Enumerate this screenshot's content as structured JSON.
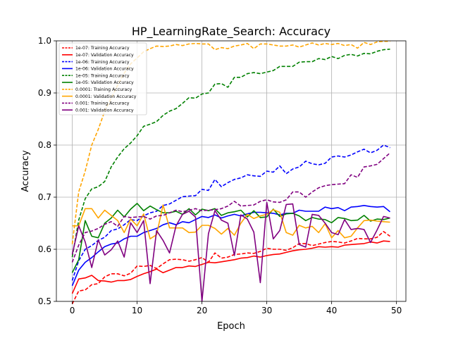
{
  "chart_data": {
    "type": "line",
    "title": "HP_LearningRate_Search: Accuracy",
    "xlabel": "Epoch",
    "ylabel": "Accuracy",
    "xlim": [
      -2.45,
      51.45
    ],
    "ylim": [
      0.5,
      1.0
    ],
    "xticks": [
      0,
      10,
      20,
      30,
      40,
      50
    ],
    "yticks": [
      0.5,
      0.6,
      0.7,
      0.8,
      0.9,
      1.0
    ],
    "grid": true,
    "legend_position": "top-left",
    "x": [
      0,
      1,
      2,
      3,
      4,
      5,
      6,
      7,
      8,
      9,
      10,
      11,
      12,
      13,
      14,
      15,
      16,
      17,
      18,
      19,
      20,
      21,
      22,
      23,
      24,
      25,
      26,
      27,
      28,
      29,
      30,
      31,
      32,
      33,
      34,
      35,
      36,
      37,
      38,
      39,
      40,
      41,
      42,
      43,
      44,
      45,
      46,
      47,
      48,
      49
    ],
    "series": [
      {
        "name": "1e-07: Training Accuracy",
        "color": "#ff0000",
        "dash": true,
        "values": [
          0.495,
          0.52,
          0.522,
          0.532,
          0.534,
          0.547,
          0.553,
          0.553,
          0.549,
          0.554,
          0.568,
          0.567,
          0.569,
          0.563,
          0.572,
          0.58,
          0.581,
          0.58,
          0.577,
          0.58,
          0.584,
          0.575,
          0.593,
          0.583,
          0.585,
          0.59,
          0.591,
          0.593,
          0.592,
          0.596,
          0.602,
          0.6,
          0.6,
          0.598,
          0.603,
          0.611,
          0.611,
          0.607,
          0.61,
          0.613,
          0.615,
          0.614,
          0.612,
          0.616,
          0.621,
          0.62,
          0.62,
          0.623,
          0.634,
          0.625
        ]
      },
      {
        "name": "1e-07: Validation Accuracy",
        "color": "#ff0000",
        "dash": false,
        "values": [
          0.515,
          0.543,
          0.545,
          0.55,
          0.54,
          0.539,
          0.537,
          0.54,
          0.54,
          0.542,
          0.548,
          0.553,
          0.557,
          0.562,
          0.555,
          0.56,
          0.565,
          0.565,
          0.568,
          0.567,
          0.571,
          0.575,
          0.574,
          0.576,
          0.578,
          0.58,
          0.583,
          0.584,
          0.587,
          0.585,
          0.588,
          0.59,
          0.591,
          0.594,
          0.597,
          0.599,
          0.6,
          0.602,
          0.605,
          0.604,
          0.605,
          0.604,
          0.608,
          0.609,
          0.61,
          0.611,
          0.614,
          0.612,
          0.616,
          0.615
        ]
      },
      {
        "name": "1e-06: Training Accuracy",
        "color": "#0000ff",
        "dash": true,
        "values": [
          0.54,
          0.578,
          0.6,
          0.607,
          0.617,
          0.623,
          0.636,
          0.639,
          0.647,
          0.657,
          0.655,
          0.664,
          0.67,
          0.673,
          0.684,
          0.687,
          0.694,
          0.701,
          0.702,
          0.703,
          0.715,
          0.713,
          0.734,
          0.72,
          0.728,
          0.734,
          0.737,
          0.743,
          0.741,
          0.74,
          0.75,
          0.748,
          0.76,
          0.745,
          0.754,
          0.758,
          0.769,
          0.764,
          0.762,
          0.765,
          0.777,
          0.779,
          0.777,
          0.781,
          0.787,
          0.792,
          0.785,
          0.79,
          0.8,
          0.795
        ]
      },
      {
        "name": "1e-06: Validation Accuracy",
        "color": "#0000ff",
        "dash": false,
        "values": [
          0.53,
          0.56,
          0.575,
          0.584,
          0.595,
          0.605,
          0.61,
          0.612,
          0.62,
          0.625,
          0.625,
          0.632,
          0.636,
          0.64,
          0.647,
          0.651,
          0.647,
          0.653,
          0.651,
          0.657,
          0.663,
          0.661,
          0.666,
          0.66,
          0.664,
          0.667,
          0.664,
          0.668,
          0.671,
          0.671,
          0.67,
          0.669,
          0.666,
          0.669,
          0.669,
          0.675,
          0.673,
          0.673,
          0.673,
          0.681,
          0.678,
          0.68,
          0.674,
          0.681,
          0.682,
          0.684,
          0.682,
          0.681,
          0.682,
          0.672
        ]
      },
      {
        "name": "1e-05: Training Accuracy",
        "color": "#008000",
        "dash": true,
        "values": [
          0.585,
          0.656,
          0.697,
          0.716,
          0.72,
          0.73,
          0.758,
          0.777,
          0.793,
          0.804,
          0.818,
          0.836,
          0.84,
          0.845,
          0.857,
          0.865,
          0.87,
          0.88,
          0.891,
          0.89,
          0.898,
          0.9,
          0.917,
          0.918,
          0.911,
          0.93,
          0.93,
          0.937,
          0.939,
          0.937,
          0.94,
          0.943,
          0.951,
          0.951,
          0.951,
          0.959,
          0.96,
          0.96,
          0.966,
          0.964,
          0.97,
          0.966,
          0.972,
          0.974,
          0.971,
          0.976,
          0.975,
          0.98,
          0.983,
          0.984
        ]
      },
      {
        "name": "1e-05: Validation Accuracy",
        "color": "#008000",
        "dash": false,
        "values": [
          0.555,
          0.58,
          0.655,
          0.625,
          0.622,
          0.65,
          0.66,
          0.675,
          0.662,
          0.677,
          0.688,
          0.674,
          0.683,
          0.676,
          0.67,
          0.67,
          0.673,
          0.667,
          0.678,
          0.666,
          0.677,
          0.674,
          0.678,
          0.665,
          0.67,
          0.672,
          0.675,
          0.662,
          0.674,
          0.661,
          0.662,
          0.677,
          0.663,
          0.668,
          0.669,
          0.664,
          0.655,
          0.661,
          0.658,
          0.657,
          0.651,
          0.661,
          0.659,
          0.655,
          0.656,
          0.665,
          0.654,
          0.658,
          0.657,
          0.66
        ]
      },
      {
        "name": "0.0001: Training Accuracy",
        "color": "#ffa500",
        "dash": true,
        "values": [
          0.61,
          0.71,
          0.75,
          0.8,
          0.83,
          0.865,
          0.89,
          0.915,
          0.938,
          0.956,
          0.967,
          0.979,
          0.985,
          0.99,
          0.989,
          0.99,
          0.993,
          0.991,
          0.994,
          0.995,
          0.994,
          0.994,
          0.983,
          0.987,
          0.985,
          0.99,
          0.992,
          0.995,
          0.985,
          0.994,
          0.994,
          0.992,
          0.99,
          0.99,
          0.992,
          0.988,
          0.992,
          0.996,
          0.992,
          0.995,
          0.993,
          0.995,
          0.991,
          0.993,
          0.986,
          0.997,
          0.993,
          0.998,
          0.999,
          0.999
        ]
      },
      {
        "name": "0.0001: Validation Accuracy",
        "color": "#ffa500",
        "dash": false,
        "values": [
          0.645,
          0.645,
          0.678,
          0.678,
          0.66,
          0.675,
          0.665,
          0.655,
          0.632,
          0.658,
          0.645,
          0.668,
          0.62,
          0.628,
          0.685,
          0.641,
          0.641,
          0.641,
          0.632,
          0.633,
          0.646,
          0.646,
          0.64,
          0.629,
          0.64,
          0.627,
          0.65,
          0.667,
          0.659,
          0.664,
          0.667,
          0.676,
          0.671,
          0.632,
          0.627,
          0.646,
          0.641,
          0.644,
          0.632,
          0.649,
          0.622,
          0.636,
          0.622,
          0.625,
          0.641,
          0.655,
          0.656,
          0.654,
          0.653,
          0.652
        ]
      },
      {
        "name": "0.001: Training Accuracy",
        "color": "#800080",
        "dash": true,
        "values": [
          0.575,
          0.608,
          0.632,
          0.635,
          0.64,
          0.648,
          0.653,
          0.644,
          0.663,
          0.661,
          0.662,
          0.663,
          0.658,
          0.664,
          0.665,
          0.67,
          0.675,
          0.672,
          0.675,
          0.678,
          0.674,
          0.675,
          0.676,
          0.678,
          0.683,
          0.692,
          0.683,
          0.684,
          0.685,
          0.692,
          0.695,
          0.691,
          0.69,
          0.695,
          0.71,
          0.71,
          0.7,
          0.71,
          0.718,
          0.722,
          0.724,
          0.725,
          0.726,
          0.743,
          0.738,
          0.758,
          0.76,
          0.763,
          0.774,
          0.785
        ]
      },
      {
        "name": "0.001: Validation Accuracy",
        "color": "#800080",
        "dash": false,
        "values": [
          0.59,
          0.645,
          0.614,
          0.565,
          0.618,
          0.589,
          0.599,
          0.616,
          0.585,
          0.651,
          0.632,
          0.655,
          0.534,
          0.636,
          0.617,
          0.593,
          0.645,
          0.667,
          0.673,
          0.662,
          0.5,
          0.63,
          0.674,
          0.656,
          0.65,
          0.588,
          0.666,
          0.658,
          0.633,
          0.536,
          0.69,
          0.62,
          0.636,
          0.686,
          0.687,
          0.609,
          0.604,
          0.667,
          0.665,
          0.65,
          0.632,
          0.628,
          0.657,
          0.638,
          0.64,
          0.638,
          0.613,
          0.637,
          0.663,
          0.66
        ]
      }
    ]
  }
}
